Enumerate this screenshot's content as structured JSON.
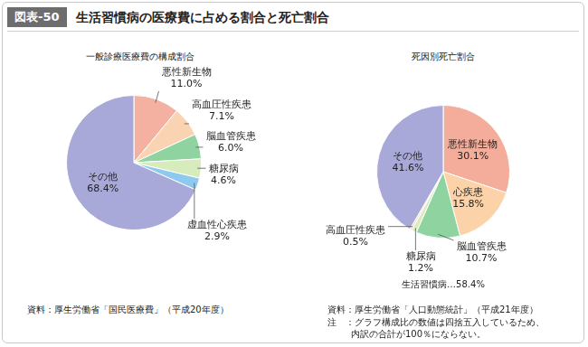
{
  "header": {
    "label": "図表-50",
    "title": "生活習慣病の医療費に占める割合と死亡割合"
  },
  "chart_data": [
    {
      "type": "pie",
      "title": "一般診療医療費の構成割合",
      "categories": [
        "悪性新生物",
        "高血圧性疾患",
        "脳血管疾患",
        "糖尿病",
        "虚血性心疾患",
        "その他"
      ],
      "values": [
        11.0,
        7.1,
        6.0,
        4.6,
        2.9,
        68.4
      ],
      "value_labels": [
        "11.0%",
        "7.1%",
        "6.0%",
        "4.6%",
        "2.9%",
        "68.4%"
      ],
      "colors": [
        "#f4b0a0",
        "#f9d3b2",
        "#8fd4a0",
        "#d6ecbc",
        "#8ec9ef",
        "#a9a9d9"
      ],
      "data_labels": true,
      "source": "資料：厚生労働省「国民医療費」（平成20年度）"
    },
    {
      "type": "pie",
      "title": "死因別死亡割合",
      "categories": [
        "悪性新生物",
        "心疾患",
        "脳血管疾患",
        "糖尿病",
        "高血圧性疾患",
        "その他"
      ],
      "values": [
        30.1,
        15.8,
        10.7,
        1.2,
        0.5,
        41.6
      ],
      "value_labels": [
        "30.1%",
        "15.8%",
        "10.7%",
        "1.2%",
        "0.5%",
        "41.6%"
      ],
      "colors": [
        "#f4ad9a",
        "#fcd2a8",
        "#8fd4a0",
        "#d8ecc0",
        "#f9d8c0",
        "#a9a9d9"
      ],
      "data_labels": true,
      "annotation": "生活習慣病…58.4%",
      "source": "資料：厚生労働省「人口動態統計」（平成21年度）",
      "note": [
        "注　：グラフ構成比の数値は四捨五入しているため、",
        "内訳の合計が100％にならない。"
      ]
    }
  ]
}
